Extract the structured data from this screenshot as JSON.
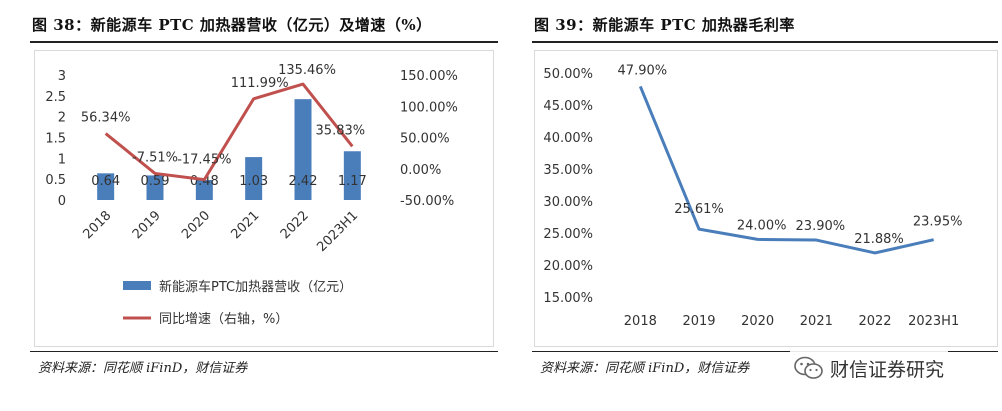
{
  "figures": [
    {
      "title": "图 38：新能源车 PTC 加热器营收（亿元）及增速（%）",
      "source": "资料来源：同花顺 iFinD，财信证券"
    },
    {
      "title": "图 39：新能源车 PTC 加热器毛利率",
      "source": "资料来源：同花顺 iFinD，财信证券"
    }
  ],
  "watermark": {
    "text": "财信证券研究"
  },
  "colors": {
    "bar": "#4a7ebb",
    "growth_line": "#c0504d",
    "margin_line": "#4a7ebb"
  },
  "chart_data": [
    {
      "type": "bar+line",
      "title": "新能源车 PTC 加热器营收（亿元）及增速（%）",
      "categories": [
        "2018",
        "2019",
        "2020",
        "2021",
        "2022",
        "2023H1"
      ],
      "series": [
        {
          "name": "新能源车PTC加热器营收（亿元）",
          "kind": "bar",
          "axis": "left",
          "values": [
            0.64,
            0.59,
            0.48,
            1.03,
            2.42,
            1.17
          ],
          "labels": [
            "0.64",
            "0.59",
            "0.48",
            "1.03",
            "2.42",
            "1.17"
          ]
        },
        {
          "name": "同比增速（右轴，%）",
          "kind": "line",
          "axis": "right",
          "values": [
            56.34,
            -7.51,
            -17.45,
            111.99,
            135.46,
            35.83
          ],
          "labels": [
            "56.34%",
            "-7.51%",
            "-17.45%",
            "111.99%",
            "135.46%",
            "35.83%"
          ]
        }
      ],
      "y_left": {
        "range": [
          0,
          3
        ],
        "ticks": [
          "0",
          "0.5",
          "1",
          "1.5",
          "2",
          "2.5",
          "3"
        ]
      },
      "y_right": {
        "range": [
          -50,
          150
        ],
        "ticks": [
          "-50.00%",
          "0.00%",
          "50.00%",
          "100.00%",
          "150.00%"
        ]
      },
      "legend_placement": "bottom"
    },
    {
      "type": "line",
      "title": "新能源车 PTC 加热器毛利率",
      "categories": [
        "2018",
        "2019",
        "2020",
        "2021",
        "2022",
        "2023H1"
      ],
      "series": [
        {
          "name": "毛利率",
          "values": [
            47.9,
            25.61,
            24.0,
            23.9,
            21.88,
            23.95
          ],
          "labels": [
            "47.90%",
            "25.61%",
            "24.00%",
            "23.90%",
            "21.88%",
            "23.95%"
          ]
        }
      ],
      "y": {
        "range": [
          15,
          50
        ],
        "ticks": [
          "15.00%",
          "20.00%",
          "25.00%",
          "30.00%",
          "35.00%",
          "40.00%",
          "45.00%",
          "50.00%"
        ]
      }
    }
  ]
}
